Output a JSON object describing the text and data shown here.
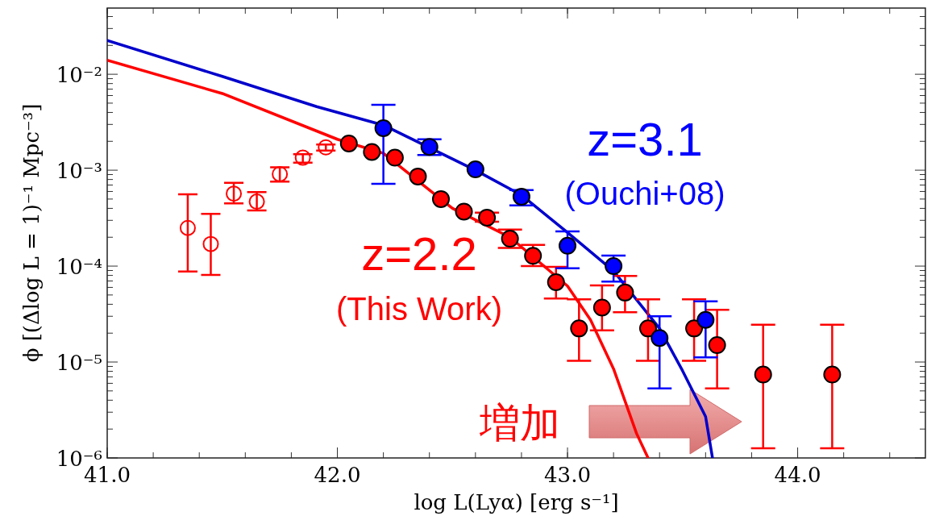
{
  "chart_data": {
    "type": "scatter",
    "xlabel": "log L(Lyα) [erg s⁻¹]",
    "ylabel": "ϕ [(Δlog L = 1)⁻¹ Mpc⁻³]",
    "log": "y",
    "xlim": [
      41.0,
      44.555
    ],
    "ylim": [
      1e-06,
      0.049
    ],
    "xticks": [
      {
        "value": 41,
        "label": "41.0"
      },
      {
        "value": 42,
        "label": "42.0"
      },
      {
        "value": 43,
        "label": "43.0"
      },
      {
        "value": 44,
        "label": "44.0"
      }
    ],
    "yticks": [
      {
        "value": 1e-06,
        "label": "10⁻⁶"
      },
      {
        "value": 1e-05,
        "label": "10⁻⁵"
      },
      {
        "value": 0.0001,
        "label": "10⁻⁴"
      },
      {
        "value": 0.001,
        "label": "10⁻³"
      },
      {
        "value": 0.01,
        "label": "10⁻²"
      }
    ],
    "grid": false,
    "series": [
      {
        "type": "line",
        "color": "#ff0000",
        "x": [
          41.0,
          41.5,
          42.0,
          42.2,
          42.5,
          42.75,
          43.0,
          43.1,
          43.2,
          43.3,
          43.35
        ],
        "values": [
          0.014,
          0.0063,
          0.0021,
          0.0015,
          0.0004,
          0.0002,
          6.2e-05,
          2.75e-05,
          8.5e-06,
          1.8e-06,
          1e-06
        ]
      },
      {
        "type": "line",
        "color": "#0000cc",
        "x": [
          41.0,
          41.5,
          41.91,
          42.2,
          42.6,
          42.8,
          43.0,
          43.2,
          43.4,
          43.5,
          43.6,
          43.63
        ],
        "values": [
          0.0225,
          0.0095,
          0.0046,
          0.00295,
          0.001,
          0.00055,
          0.000224,
          8.9e-05,
          2.24e-05,
          8.1e-06,
          2.7e-06,
          1e-06
        ]
      },
      {
        "color": "#ff0000",
        "marker": "circle",
        "x": [
          41.35,
          41.45,
          41.55,
          41.65,
          41.75,
          41.85,
          41.95
        ],
        "values": [
          0.00025,
          0.00017,
          0.00057,
          0.00047,
          0.00091,
          0.00135,
          0.00173
        ],
        "errors": [
          [
            8.8e-05,
            0.00056
          ],
          [
            8.1e-05,
            0.00035
          ],
          [
            0.00045,
            0.00074
          ],
          [
            0.00038,
            0.00059
          ],
          [
            0.00076,
            0.00107
          ],
          [
            0.0012,
            0.00147
          ],
          [
            0.0016,
            0.00185
          ]
        ]
      },
      {
        "name": "z=2.2",
        "color": "#ff0000",
        "marker": "circle",
        "x": [
          42.05,
          42.15,
          42.25,
          42.35,
          42.45,
          42.55,
          42.65,
          42.75,
          42.85,
          42.95,
          43.05,
          43.15,
          43.25,
          43.35,
          43.55,
          43.65,
          43.85,
          44.15
        ],
        "values": [
          0.0019,
          0.00155,
          0.00135,
          0.00086,
          0.0005,
          0.00037,
          0.00032,
          0.000193,
          0.000128,
          6.8e-05,
          2.24e-05,
          3.7e-05,
          5.3e-05,
          2.24e-05,
          2.24e-05,
          1.5e-05,
          7.4e-06,
          7.4e-06
        ],
        "errors": [
          null,
          null,
          null,
          null,
          null,
          null,
          [
            0.00029,
            0.00036
          ],
          [
            0.000155,
            0.00024
          ],
          [
            0.0001,
            0.000166
          ],
          [
            4.6e-05,
            9.8e-05
          ],
          [
            1.03e-05,
            4.5e-05
          ],
          [
            2.14e-05,
            6.3e-05
          ],
          [
            3.3e-05,
            7.9e-05
          ],
          [
            1.03e-05,
            4.5e-05
          ],
          [
            1.03e-05,
            4.5e-05
          ],
          [
            5.3e-06,
            3.5e-05
          ],
          [
            1.26e-06,
            2.45e-05
          ],
          [
            1.26e-06,
            2.45e-05
          ]
        ]
      },
      {
        "name": "z=3.1",
        "color": "#0000ff",
        "marker": "circle",
        "x": [
          42.2,
          42.4,
          42.6,
          42.8,
          43.0,
          43.2,
          43.4,
          43.6
        ],
        "values": [
          0.00274,
          0.00175,
          0.00102,
          0.00053,
          0.000163,
          0.0001,
          1.78e-05,
          2.75e-05
        ],
        "errors": [
          [
            0.00072,
            0.0048
          ],
          [
            0.00144,
            0.0021
          ],
          null,
          [
            0.00043,
            0.00062
          ],
          [
            9.5e-05,
            0.00023
          ],
          [
            6.9e-05,
            0.000129
          ],
          [
            5.3e-06,
            3e-05
          ],
          [
            1.12e-05,
            4.3e-05
          ]
        ]
      }
    ],
    "annotations": [
      "(Ouchi+08)",
      "(This Work)",
      "増加"
    ]
  }
}
